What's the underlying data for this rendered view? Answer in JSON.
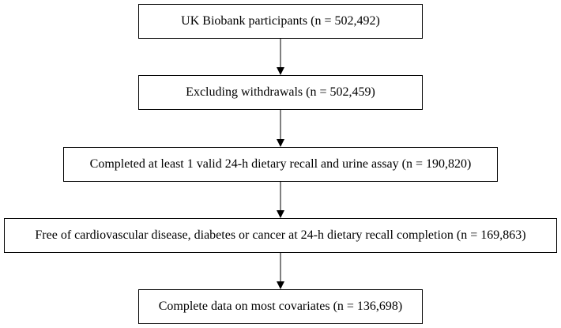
{
  "steps": [
    {
      "label": "UK Biobank participants (n = 502,492)"
    },
    {
      "label": "Excluding withdrawals (n = 502,459)"
    },
    {
      "label": "Completed at least 1 valid 24-h dietary recall and urine assay (n = 190,820)"
    },
    {
      "label": "Free of cardiovascular disease, diabetes or cancer at 24-h dietary recall completion (n = 169,863)"
    },
    {
      "label": "Complete data on most covariates (n = 136,698)"
    }
  ]
}
